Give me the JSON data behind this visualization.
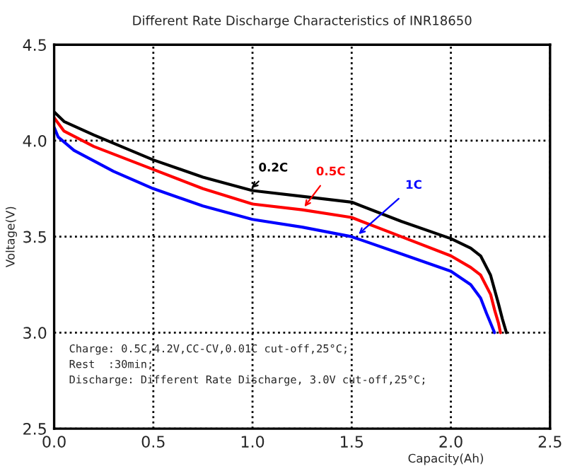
{
  "chart_data": {
    "type": "line",
    "title": "Different Rate Discharge Characteristics of INR18650",
    "xlabel": "Capacity(Ah)",
    "ylabel": "Voltage(V)",
    "xlim": [
      0,
      2.5
    ],
    "xticks": [
      {
        "value": 0,
        "label": "0.0"
      },
      0.5,
      {
        "value": 1,
        "label": "1.0"
      },
      1.5,
      {
        "value": 2,
        "label": "2.0"
      },
      2.5
    ],
    "ylim": [
      2.5,
      4.5
    ],
    "yticks": [
      2.5,
      {
        "value": 3,
        "label": "3.0"
      },
      3.5,
      {
        "value": 4,
        "label": "4.0"
      },
      4.5
    ],
    "grid": true,
    "line_style": "solid",
    "series": [
      {
        "color": "#000000",
        "x": [
          0,
          0.05,
          0.2,
          0.5,
          0.75,
          1.0,
          1.25,
          1.5,
          1.75,
          2.0,
          2.1,
          2.15,
          2.2,
          2.24,
          2.26,
          2.28
        ],
        "values": [
          4.15,
          4.1,
          4.03,
          3.9,
          3.81,
          3.74,
          3.71,
          3.68,
          3.58,
          3.49,
          3.44,
          3.4,
          3.3,
          3.15,
          3.07,
          3.0
        ]
      },
      {
        "color": "#ff0000",
        "x": [
          0,
          0.05,
          0.2,
          0.5,
          0.75,
          1.0,
          1.25,
          1.5,
          1.75,
          2.0,
          2.1,
          2.15,
          2.2,
          2.22,
          2.24,
          2.25
        ],
        "values": [
          4.12,
          4.05,
          3.97,
          3.85,
          3.75,
          3.67,
          3.64,
          3.6,
          3.5,
          3.4,
          3.34,
          3.3,
          3.2,
          3.12,
          3.05,
          3.0
        ]
      },
      {
        "color": "#0000ff",
        "x": [
          0,
          0.02,
          0.1,
          0.3,
          0.5,
          0.75,
          1.0,
          1.25,
          1.5,
          1.75,
          2.0,
          2.1,
          2.15,
          2.18,
          2.2,
          2.22
        ],
        "values": [
          4.07,
          4.02,
          3.95,
          3.84,
          3.75,
          3.66,
          3.59,
          3.55,
          3.5,
          3.41,
          3.32,
          3.25,
          3.18,
          3.1,
          3.05,
          3.0
        ]
      }
    ],
    "annotations": [
      {
        "text": "0.2C",
        "x": 0.98,
        "y": 3.74
      },
      {
        "text": "0.5C",
        "x": 1.25,
        "y": 3.64
      },
      {
        "text": "1C",
        "x": 1.52,
        "y": 3.5
      },
      "Charge: 0.5C,4.2V,CC-CV,0.01C cut-off,25°C;\nRest  :30min;\nDischarge: Different Rate Discharge, 3.0V cut-off,25°C;"
    ]
  }
}
